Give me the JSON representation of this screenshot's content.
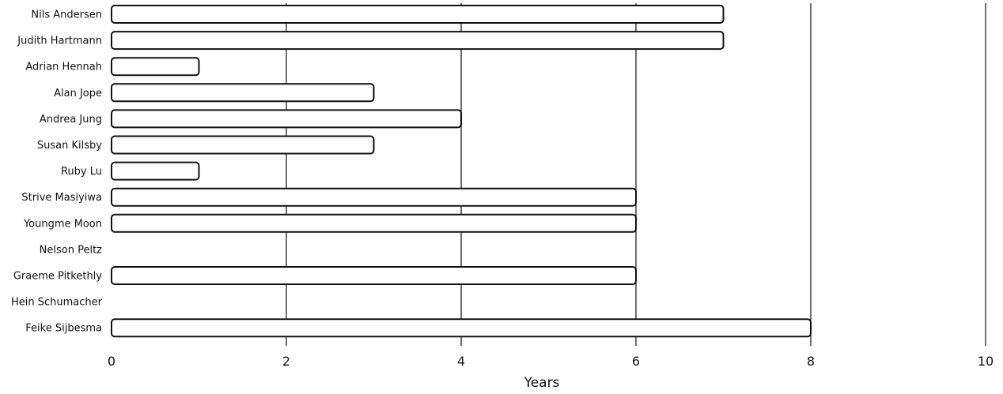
{
  "chart_data": {
    "type": "bar",
    "orientation": "horizontal",
    "categories": [
      "Nils Andersen",
      "Judith Hartmann",
      "Adrian Hennah",
      "Alan Jope",
      "Andrea Jung",
      "Susan Kilsby",
      "Ruby Lu",
      "Strive Masiyiwa",
      "Youngme Moon",
      "Nelson Peltz",
      "Graeme Pitkethly",
      "Hein Schumacher",
      "Feike Sijbesma"
    ],
    "values": [
      7,
      7,
      1,
      3,
      4,
      3,
      1,
      6,
      6,
      0,
      6,
      0,
      8
    ],
    "xlabel": "Years",
    "ylabel": "",
    "xlim": [
      0,
      10
    ],
    "xticks": [
      "0",
      "2",
      "4",
      "6",
      "8",
      "10"
    ],
    "grid": "vertical",
    "bar_fill": "#ffffff",
    "bar_stroke": "#111111"
  }
}
